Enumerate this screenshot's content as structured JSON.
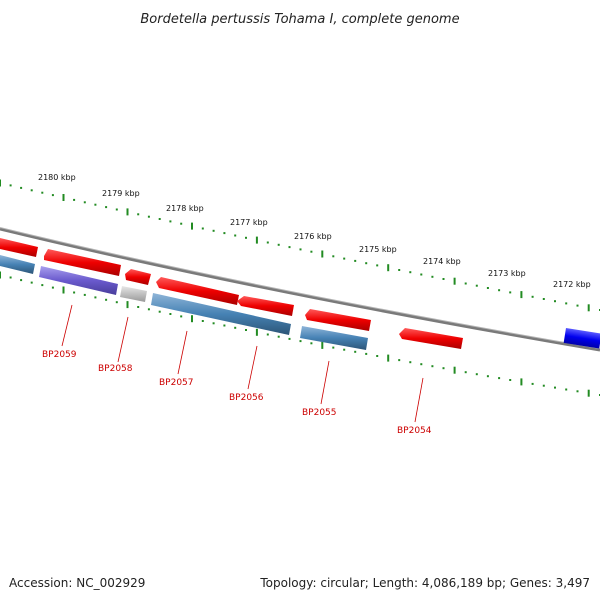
{
  "title": "Bordetella pertussis Tohama I, complete genome",
  "ticks": [
    "2180 kbp",
    "2179 kbp",
    "2178 kbp",
    "2177 kbp",
    "2176 kbp",
    "2175 kbp",
    "2174 kbp",
    "2173 kbp",
    "2172 kbp"
  ],
  "genes": [
    {
      "label": "BP2059",
      "color": "#6a5acd"
    },
    {
      "label": "BP2058",
      "color": "#c0c0c0"
    },
    {
      "label": "BP2057",
      "color": "#4682b4"
    },
    {
      "label": "BP2056",
      "color": "#ff0000"
    },
    {
      "label": "BP2055",
      "color": "#4682b4"
    },
    {
      "label": "BP2054",
      "color": "#ff0000"
    }
  ],
  "colors": {
    "cds_forward": "#ff0000",
    "cog_blue": "#4682b4",
    "cog_purple": "#6a5acd",
    "cog_gray": "#c0c0c0",
    "feature_blue": "#0000ff",
    "backbone": "#808080",
    "tick_marks": "#228b22"
  },
  "footer": {
    "accession": "Accession: NC_002929",
    "summary": "Topology: circular; Length: 4,086,189 bp; Genes: 3,497"
  }
}
